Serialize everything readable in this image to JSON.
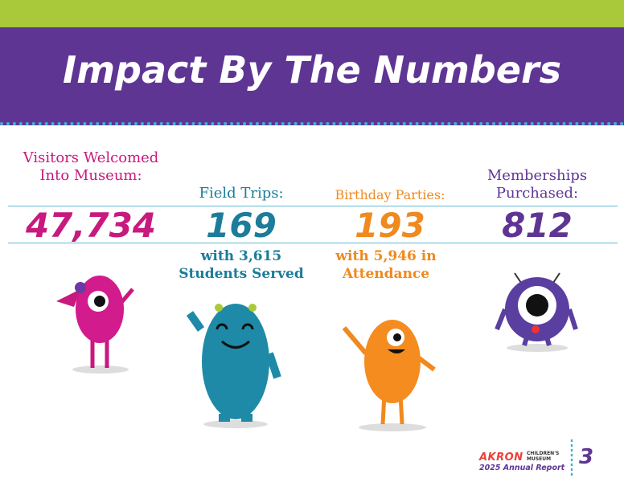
{
  "header": {
    "title": "Impact By The Numbers"
  },
  "stats": [
    {
      "label": "Visitors Welcomed Into Museum:",
      "value": "47,734"
    },
    {
      "label": "Field Trips:",
      "value": "169",
      "detail": "with 3,615 Students Served"
    },
    {
      "label": "Birthday Parties:",
      "value": "193",
      "detail": "with 5,946 in Attendance"
    },
    {
      "label": "Memberships Purchased:",
      "value": "812"
    }
  ],
  "footer": {
    "logo": "AKRON",
    "logo_sub": "CHILDREN'S MUSEUM",
    "report": "2025 Annual Report",
    "page": "3"
  }
}
